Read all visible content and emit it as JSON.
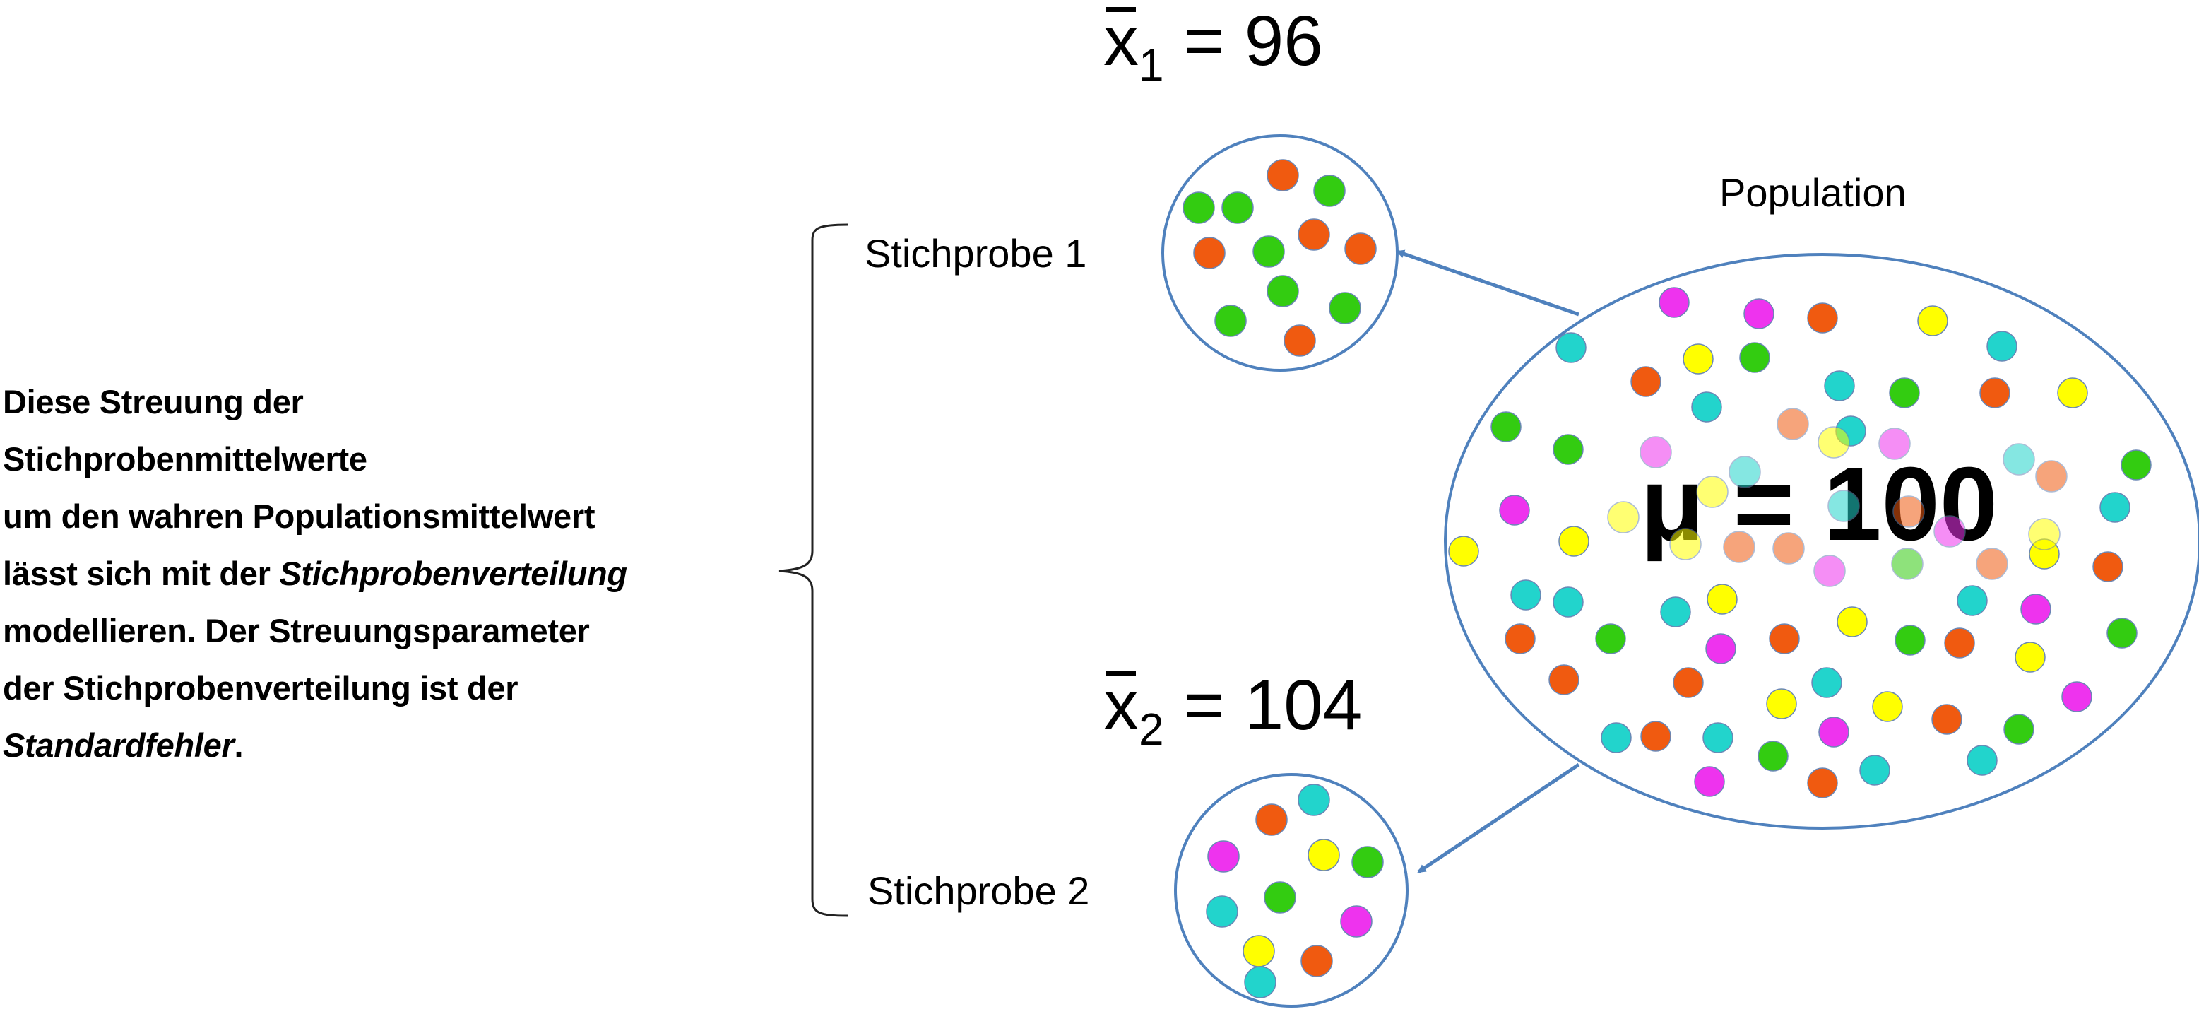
{
  "explanation": {
    "line1": "Diese Streuung der",
    "line2": "Stichprobenmittelwerte",
    "line3": "um den wahren Populationsmittelwert",
    "line4_pre": "lässt sich mit der ",
    "line4_em": "Stichprobenverteilung",
    "line5": "modellieren. Der Streuungsparameter",
    "line6": "der Stichprobenverteilung ist der",
    "line7_em": "Standardfehler",
    "line7_post": "."
  },
  "samples": {
    "sample1": {
      "label": "Stichprobe 1",
      "mean_symbol": "x",
      "mean_subscript": "1",
      "mean_value": "= 96"
    },
    "sample2": {
      "label": "Stichprobe 2",
      "mean_symbol": "x",
      "mean_subscript": "2",
      "mean_value": "= 104"
    }
  },
  "population": {
    "label": "Population",
    "mean_text": "μ = 100"
  },
  "colors": {
    "outline": "#4f81bd",
    "arrow": "#4f81bd",
    "green": "#33cc11",
    "orange": "#f05a10",
    "magenta": "#ee33ee",
    "cyan": "#22d4cc",
    "yellow": "#ffff00",
    "dot_edge": "#6a87b5"
  }
}
